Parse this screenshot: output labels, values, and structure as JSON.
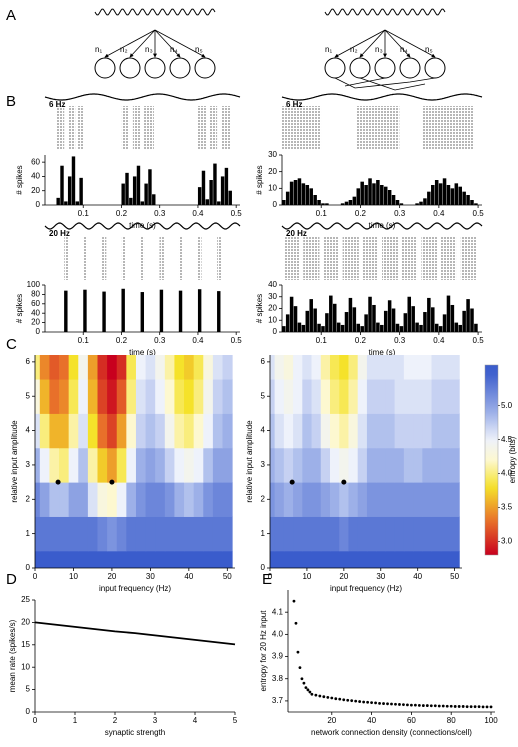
{
  "panel_labels": [
    "A",
    "B",
    "C",
    "D",
    "E"
  ],
  "diagrams": [
    {
      "labels": [
        "n₁",
        "n₂",
        "n₃",
        "n₄",
        "n₅"
      ]
    },
    {
      "labels": [
        "n₁",
        "n₂",
        "n₃",
        "n₄",
        "n₅"
      ]
    }
  ],
  "chart_data": [
    {
      "type": "histogram",
      "title": "6 Hz",
      "ylabel": "# spikes",
      "xlabel": "time (s)",
      "color": "#000000",
      "bins": [
        0,
        0.01,
        0.02,
        0.03,
        0.04,
        0.05,
        0.06,
        0.07,
        0.08,
        0.09,
        0.1,
        0.11,
        0.12,
        0.13,
        0.14,
        0.15,
        0.16,
        0.17,
        0.18,
        0.19,
        0.2,
        0.21,
        0.22,
        0.23,
        0.24,
        0.25,
        0.26,
        0.27,
        0.28,
        0.29,
        0.3,
        0.31,
        0.32,
        0.33,
        0.34,
        0.35,
        0.36,
        0.37,
        0.38,
        0.39,
        0.4,
        0.41,
        0.42,
        0.43,
        0.44,
        0.45,
        0.46,
        0.47,
        0.48,
        0.49,
        0.5
      ],
      "values": [
        0,
        0,
        0,
        10,
        55,
        5,
        40,
        68,
        5,
        38,
        0,
        0,
        0,
        0,
        0,
        0,
        0,
        0,
        0,
        0,
        30,
        45,
        10,
        40,
        55,
        5,
        30,
        50,
        15,
        0,
        0,
        0,
        0,
        0,
        0,
        0,
        0,
        0,
        0,
        0,
        25,
        48,
        8,
        35,
        58,
        5,
        40,
        52,
        20,
        0
      ],
      "raster": [
        [
          0.03,
          0.05
        ],
        [
          0.06,
          0.08
        ],
        [
          0.085,
          0.1
        ],
        [
          0.2,
          0.22
        ],
        [
          0.23,
          0.25
        ],
        [
          0.26,
          0.285
        ],
        [
          0.4,
          0.42
        ],
        [
          0.43,
          0.45
        ],
        [
          0.46,
          0.485
        ]
      ],
      "xlim": [
        0,
        0.51
      ],
      "xticks": [
        0.1,
        0.2,
        0.3,
        0.4,
        0.5
      ],
      "ylim": [
        0,
        70
      ],
      "yticks": [
        0,
        20,
        40,
        60
      ]
    },
    {
      "type": "histogram",
      "title": "20 Hz",
      "ylabel": "# spikes",
      "xlabel": "time (s)",
      "color": "#000000",
      "bins": [
        0,
        0.01,
        0.02,
        0.03,
        0.04,
        0.05,
        0.06,
        0.07,
        0.08,
        0.09,
        0.1,
        0.11,
        0.12,
        0.13,
        0.14,
        0.15,
        0.16,
        0.17,
        0.18,
        0.19,
        0.2,
        0.21,
        0.22,
        0.23,
        0.24,
        0.25,
        0.26,
        0.27,
        0.28,
        0.29,
        0.3,
        0.31,
        0.32,
        0.33,
        0.34,
        0.35,
        0.36,
        0.37,
        0.38,
        0.39,
        0.4,
        0.41,
        0.42,
        0.43,
        0.44,
        0.45,
        0.46,
        0.47,
        0.48,
        0.49,
        0.5
      ],
      "values": [
        0,
        0,
        0,
        0,
        0,
        88,
        0,
        0,
        0,
        0,
        90,
        0,
        0,
        0,
        0,
        86,
        0,
        0,
        0,
        0,
        92,
        0,
        0,
        0,
        0,
        85,
        0,
        0,
        0,
        0,
        90,
        0,
        0,
        0,
        0,
        88,
        0,
        0,
        0,
        0,
        91,
        0,
        0,
        0,
        0,
        87,
        0,
        0,
        0,
        0
      ],
      "raster": [
        [
          0.05,
          0.06
        ],
        [
          0.1,
          0.11
        ],
        [
          0.15,
          0.16
        ],
        [
          0.2,
          0.21
        ],
        [
          0.25,
          0.26
        ],
        [
          0.3,
          0.31
        ],
        [
          0.35,
          0.36
        ],
        [
          0.4,
          0.41
        ],
        [
          0.45,
          0.46
        ]
      ],
      "xlim": [
        0,
        0.51
      ],
      "xticks": [
        0.1,
        0.2,
        0.3,
        0.4,
        0.5
      ],
      "ylim": [
        0,
        100
      ],
      "yticks": [
        0,
        20,
        40,
        60,
        80,
        100
      ]
    },
    {
      "type": "histogram",
      "title": "6 Hz",
      "ylabel": "# spikes",
      "xlabel": "time (s)",
      "color": "#000000",
      "bins": [
        0,
        0.01,
        0.02,
        0.03,
        0.04,
        0.05,
        0.06,
        0.07,
        0.08,
        0.09,
        0.1,
        0.11,
        0.12,
        0.13,
        0.14,
        0.15,
        0.16,
        0.17,
        0.18,
        0.19,
        0.2,
        0.21,
        0.22,
        0.23,
        0.24,
        0.25,
        0.26,
        0.27,
        0.28,
        0.29,
        0.3,
        0.31,
        0.32,
        0.33,
        0.34,
        0.35,
        0.36,
        0.37,
        0.38,
        0.39,
        0.4,
        0.41,
        0.42,
        0.43,
        0.44,
        0.45,
        0.46,
        0.47,
        0.48,
        0.49,
        0.5
      ],
      "values": [
        3,
        8,
        14,
        15,
        16,
        13,
        12,
        10,
        6,
        3,
        1,
        1,
        0,
        0,
        0,
        1,
        2,
        3,
        5,
        10,
        14,
        12,
        16,
        13,
        15,
        12,
        11,
        9,
        6,
        3,
        1,
        0,
        0,
        0,
        1,
        2,
        4,
        8,
        12,
        15,
        13,
        16,
        12,
        10,
        13,
        11,
        8,
        6,
        3,
        1
      ],
      "raster": [
        [
          0,
          0.1
        ],
        [
          0.19,
          0.3
        ],
        [
          0.36,
          0.49
        ]
      ],
      "xlim": [
        0,
        0.51
      ],
      "xticks": [
        0.1,
        0.2,
        0.3,
        0.4,
        0.5
      ],
      "ylim": [
        0,
        30
      ],
      "yticks": [
        0,
        10,
        20,
        30
      ]
    },
    {
      "type": "histogram",
      "title": "20 Hz",
      "ylabel": "# spikes",
      "xlabel": "time (s)",
      "color": "#000000",
      "bins": [
        0,
        0.01,
        0.02,
        0.03,
        0.04,
        0.05,
        0.06,
        0.07,
        0.08,
        0.09,
        0.1,
        0.11,
        0.12,
        0.13,
        0.14,
        0.15,
        0.16,
        0.17,
        0.18,
        0.19,
        0.2,
        0.21,
        0.22,
        0.23,
        0.24,
        0.25,
        0.26,
        0.27,
        0.28,
        0.29,
        0.3,
        0.31,
        0.32,
        0.33,
        0.34,
        0.35,
        0.36,
        0.37,
        0.38,
        0.39,
        0.4,
        0.41,
        0.42,
        0.43,
        0.44,
        0.45,
        0.46,
        0.47,
        0.48,
        0.49,
        0.5
      ],
      "values": [
        5,
        15,
        30,
        22,
        8,
        6,
        18,
        28,
        20,
        7,
        5,
        16,
        31,
        24,
        8,
        6,
        17,
        29,
        21,
        7,
        5,
        15,
        30,
        23,
        8,
        6,
        18,
        27,
        20,
        7,
        5,
        16,
        30,
        22,
        8,
        6,
        17,
        29,
        21,
        7,
        5,
        15,
        31,
        23,
        8,
        6,
        18,
        28,
        20,
        7
      ],
      "raster": [
        [
          0.005,
          0.045
        ],
        [
          0.055,
          0.095
        ],
        [
          0.105,
          0.145
        ],
        [
          0.155,
          0.195
        ],
        [
          0.205,
          0.245
        ],
        [
          0.255,
          0.295
        ],
        [
          0.305,
          0.345
        ],
        [
          0.355,
          0.395
        ],
        [
          0.405,
          0.445
        ],
        [
          0.455,
          0.495
        ]
      ],
      "xlim": [
        0,
        0.51
      ],
      "xticks": [
        0.1,
        0.2,
        0.3,
        0.4,
        0.5
      ],
      "ylim": [
        0,
        40
      ],
      "yticks": [
        0,
        10,
        20,
        30,
        40
      ]
    },
    {
      "type": "heatmap",
      "xlabel": "input frequency (Hz)",
      "ylabel": "relative input amplitude",
      "x": [
        0,
        2.5,
        5,
        7.5,
        10,
        12.5,
        15,
        17.5,
        20,
        22.5,
        25,
        27.5,
        30,
        32.5,
        35,
        37.5,
        40,
        42.5,
        45,
        47.5,
        50
      ],
      "y": [
        0,
        1,
        2,
        3,
        4,
        5,
        6
      ],
      "z": [
        [
          5.5,
          5.5,
          5.5,
          5.5,
          5.5,
          5.5,
          5.5,
          5.5,
          5.5,
          5.5,
          5.5,
          5.5,
          5.5,
          5.5,
          5.5,
          5.5,
          5.5,
          5.5,
          5.5,
          5.5,
          5.5
        ],
        [
          5.3,
          5.3,
          5.3,
          5.3,
          5.3,
          5.3,
          5.3,
          5.2,
          5.1,
          5.2,
          5.3,
          5.3,
          5.3,
          5.3,
          5.3,
          5.3,
          5.3,
          5.3,
          5.3,
          5.3,
          5.3
        ],
        [
          5.2,
          5.0,
          4.8,
          4.8,
          5.0,
          5.0,
          4.6,
          4.3,
          4.2,
          4.5,
          4.9,
          5.1,
          5.2,
          5.2,
          5.1,
          4.9,
          4.8,
          4.9,
          5.1,
          5.2,
          5.2
        ],
        [
          4.9,
          4.5,
          4.1,
          4.0,
          4.5,
          4.8,
          4.1,
          3.7,
          3.5,
          3.9,
          4.5,
          4.9,
          5.0,
          4.9,
          4.7,
          4.5,
          4.4,
          4.5,
          4.8,
          5.0,
          5.0
        ],
        [
          4.6,
          4.0,
          3.6,
          3.6,
          4.1,
          4.6,
          3.8,
          3.3,
          3.1,
          3.5,
          4.2,
          4.7,
          4.8,
          4.7,
          4.4,
          4.1,
          4.0,
          4.2,
          4.5,
          4.8,
          4.9
        ],
        [
          4.3,
          3.6,
          3.3,
          3.4,
          3.9,
          4.5,
          3.6,
          3.1,
          2.9,
          3.2,
          4.0,
          4.6,
          4.7,
          4.5,
          4.2,
          3.9,
          3.8,
          4.0,
          4.4,
          4.7,
          4.8
        ],
        [
          4.0,
          3.4,
          3.2,
          3.3,
          3.8,
          4.4,
          3.5,
          3.0,
          2.8,
          3.0,
          3.9,
          4.5,
          4.6,
          4.4,
          4.1,
          3.8,
          3.7,
          3.9,
          4.3,
          4.6,
          4.7
        ]
      ],
      "points": {
        "x": [
          6,
          20
        ],
        "y": [
          2.5,
          2.5
        ]
      },
      "xlim": [
        0,
        52
      ],
      "xticks": [
        0,
        10,
        20,
        30,
        40,
        50
      ],
      "ylim": [
        0,
        6.2
      ],
      "yticks": [
        0,
        1,
        2,
        3,
        4,
        5,
        6
      ]
    },
    {
      "type": "heatmap",
      "xlabel": "input frequency (Hz)",
      "ylabel": "relative input amplitude",
      "x": [
        0,
        2.5,
        5,
        7.5,
        10,
        12.5,
        15,
        17.5,
        20,
        22.5,
        25,
        27.5,
        30,
        32.5,
        35,
        37.5,
        40,
        42.5,
        45,
        47.5,
        50
      ],
      "y": [
        0,
        1,
        2,
        3,
        4,
        5,
        6
      ],
      "z": [
        [
          5.5,
          5.5,
          5.5,
          5.5,
          5.5,
          5.5,
          5.5,
          5.5,
          5.5,
          5.5,
          5.5,
          5.5,
          5.5,
          5.5,
          5.5,
          5.5,
          5.5,
          5.5,
          5.5,
          5.5,
          5.5
        ],
        [
          5.3,
          5.3,
          5.3,
          5.3,
          5.3,
          5.3,
          5.3,
          5.3,
          5.2,
          5.3,
          5.3,
          5.3,
          5.3,
          5.3,
          5.3,
          5.3,
          5.3,
          5.3,
          5.3,
          5.3,
          5.3
        ],
        [
          5.1,
          5.0,
          4.9,
          5.0,
          5.1,
          5.1,
          5.0,
          4.9,
          4.8,
          4.9,
          5.0,
          5.1,
          5.1,
          5.1,
          5.1,
          5.1,
          5.1,
          5.1,
          5.1,
          5.1,
          5.1
        ],
        [
          4.9,
          4.8,
          4.7,
          4.8,
          4.9,
          4.9,
          4.7,
          4.5,
          4.4,
          4.5,
          4.7,
          4.9,
          4.9,
          4.9,
          4.9,
          4.8,
          4.8,
          4.9,
          4.9,
          4.9,
          4.9
        ],
        [
          4.8,
          4.6,
          4.5,
          4.6,
          4.8,
          4.7,
          4.4,
          4.2,
          4.1,
          4.3,
          4.6,
          4.8,
          4.8,
          4.8,
          4.7,
          4.7,
          4.7,
          4.7,
          4.8,
          4.8,
          4.8
        ],
        [
          4.7,
          4.5,
          4.4,
          4.5,
          4.7,
          4.6,
          4.2,
          4.0,
          3.9,
          4.1,
          4.5,
          4.7,
          4.7,
          4.7,
          4.6,
          4.6,
          4.6,
          4.6,
          4.7,
          4.7,
          4.7
        ],
        [
          4.6,
          4.4,
          4.3,
          4.5,
          4.6,
          4.5,
          4.1,
          3.9,
          3.8,
          4.0,
          4.4,
          4.6,
          4.6,
          4.6,
          4.6,
          4.5,
          4.5,
          4.5,
          4.6,
          4.6,
          4.6
        ]
      ],
      "points": {
        "x": [
          6,
          20
        ],
        "y": [
          2.5,
          2.5
        ]
      },
      "colorbar": {
        "label": "entropy (bits)",
        "lim": [
          2.8,
          5.6
        ],
        "ticks": [
          {
            "value": 3,
            "label": "3.0"
          },
          3.5,
          {
            "value": 4,
            "label": "4.0"
          },
          4.5,
          {
            "value": 5,
            "label": "5.0"
          }
        ]
      },
      "xlim": [
        0,
        52
      ],
      "xticks": [
        0,
        10,
        20,
        30,
        40,
        50
      ],
      "ylim": [
        0,
        6.2
      ],
      "yticks": [
        0,
        1,
        2,
        3,
        4,
        5,
        6
      ]
    },
    {
      "type": "line",
      "xlabel": "synaptic strength",
      "ylabel": "mean rate (spikes/s)",
      "color": "#000000",
      "x": [
        0,
        0.5,
        1,
        1.5,
        2,
        2.5,
        3,
        3.5,
        4,
        4.5,
        5
      ],
      "values": [
        20,
        19.5,
        19.0,
        18.5,
        18.0,
        17.6,
        17.1,
        16.6,
        16.1,
        15.6,
        15.1
      ],
      "xlim": [
        0,
        5
      ],
      "xticks": [
        0,
        1,
        2,
        3,
        4,
        5
      ],
      "ylim": [
        0,
        25
      ],
      "yticks": [
        0,
        5,
        10,
        15,
        20,
        25
      ]
    },
    {
      "type": "scatter",
      "xlabel": "network connection density (connections/cell)",
      "ylabel": "entropy for 20 Hz input",
      "color": "#000000",
      "x": [
        1,
        2,
        3,
        4,
        5,
        6,
        7,
        8,
        9,
        10,
        12,
        14,
        16,
        18,
        20,
        22,
        24,
        26,
        28,
        30,
        32,
        34,
        36,
        38,
        40,
        42,
        44,
        46,
        48,
        50,
        52,
        54,
        56,
        58,
        60,
        62,
        64,
        66,
        68,
        70,
        72,
        74,
        76,
        78,
        80,
        82,
        84,
        86,
        88,
        90,
        92,
        94,
        96,
        98,
        100
      ],
      "values": [
        4.15,
        4.05,
        3.92,
        3.85,
        3.8,
        3.78,
        3.76,
        3.75,
        3.74,
        3.73,
        3.726,
        3.722,
        3.719,
        3.716,
        3.713,
        3.71,
        3.708,
        3.705,
        3.703,
        3.701,
        3.699,
        3.697,
        3.695,
        3.694,
        3.692,
        3.691,
        3.689,
        3.688,
        3.687,
        3.686,
        3.685,
        3.684,
        3.683,
        3.682,
        3.681,
        3.681,
        3.68,
        3.679,
        3.679,
        3.678,
        3.678,
        3.677,
        3.677,
        3.676,
        3.676,
        3.675,
        3.675,
        3.675,
        3.674,
        3.674,
        3.674,
        3.674,
        3.673,
        3.673,
        3.673
      ],
      "xlim": [
        -2,
        102
      ],
      "xticks": [
        20,
        40,
        60,
        80,
        100
      ],
      "ylim": [
        3.65,
        4.2
      ],
      "yticks": [
        3.7,
        3.8,
        3.9,
        {
          "value": 4,
          "label": "4.0"
        },
        4.1
      ]
    }
  ]
}
